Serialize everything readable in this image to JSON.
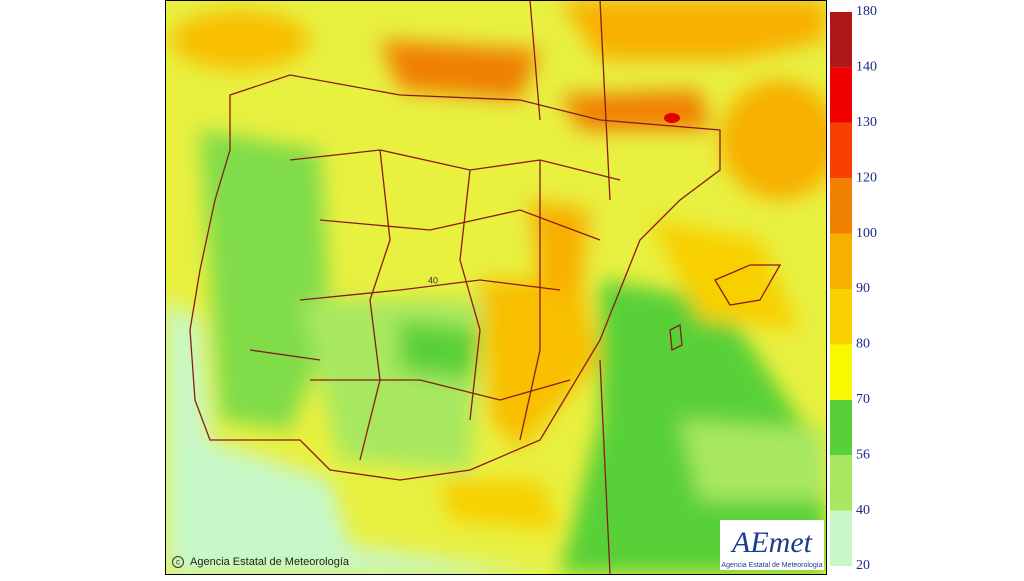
{
  "legend": {
    "ticks": [
      20,
      40,
      56,
      70,
      80,
      90,
      100,
      120,
      130,
      140,
      180
    ],
    "colors": [
      "#c8f8c8",
      "#a8e860",
      "#58d038",
      "#f8f800",
      "#f8d000",
      "#f8b000",
      "#f08000",
      "#f84000",
      "#f00000",
      "#b01818"
    ]
  },
  "map": {
    "label": "40"
  },
  "credit": "Agencia Estatal de Meteorología",
  "logo": {
    "name": "AEmet",
    "subtitle": "Agencia Estatal de Meteorología"
  }
}
